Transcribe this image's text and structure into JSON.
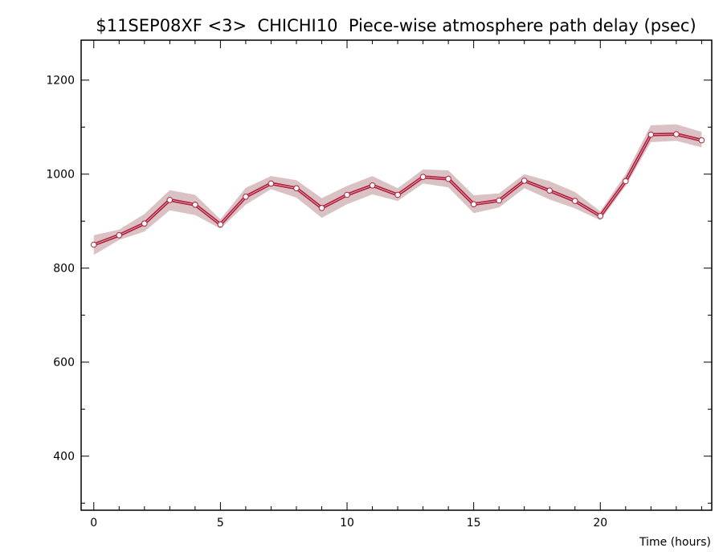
{
  "chart_data": {
    "type": "line",
    "title": "$11SEP08XF <3>  CHICHI10  Piece-wise atmosphere path delay (psec)",
    "xlabel": "Time (hours)",
    "ylabel": "",
    "xlim": [
      -0.5,
      24.4
    ],
    "ylim": [
      285,
      1285
    ],
    "x_ticks": [
      0,
      5,
      10,
      15,
      20
    ],
    "y_ticks": [
      400,
      600,
      800,
      1000,
      1200
    ],
    "grid": false,
    "colors": {
      "line": "#b0203e",
      "band": "#d9c1c4",
      "marker_fill": "#ffffff",
      "marker_stroke": "#b0203e"
    },
    "series": [
      {
        "x": [
          0,
          1,
          2,
          3,
          4,
          5,
          6,
          7,
          8,
          9,
          10,
          11,
          12,
          13,
          14,
          15,
          16,
          17,
          18,
          19,
          20,
          21,
          22,
          23,
          24
        ],
        "values": [
          850,
          870,
          895,
          945,
          935,
          893,
          952,
          980,
          970,
          928,
          956,
          976,
          956,
          994,
          990,
          936,
          944,
          986,
          965,
          943,
          911,
          985,
          1084,
          1085,
          1072
        ],
        "lower": [
          828,
          860,
          878,
          923,
          913,
          884,
          935,
          968,
          950,
          907,
          936,
          957,
          943,
          980,
          972,
          917,
          929,
          970,
          946,
          927,
          902,
          975,
          1068,
          1071,
          1057
        ],
        "upper": [
          870,
          882,
          915,
          966,
          956,
          904,
          971,
          996,
          987,
          949,
          975,
          996,
          970,
          1010,
          1008,
          955,
          959,
          1000,
          985,
          962,
          921,
          1000,
          1104,
          1106,
          1090
        ]
      }
    ]
  }
}
